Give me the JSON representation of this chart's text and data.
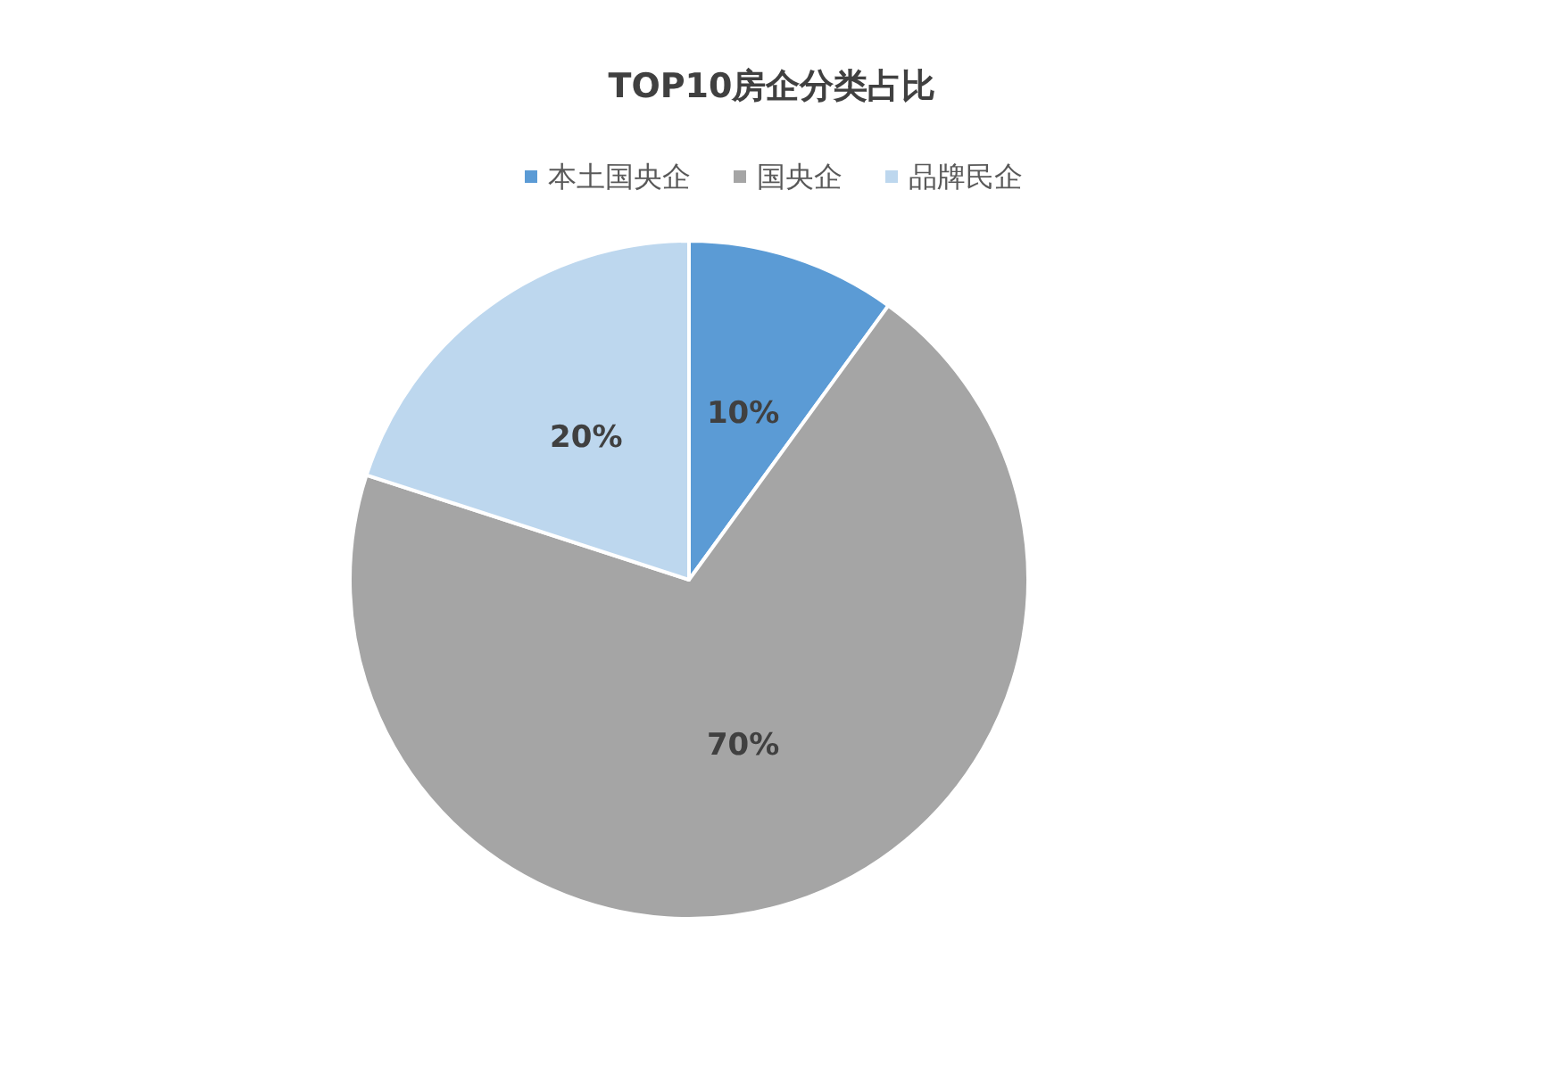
{
  "chart_data": {
    "type": "pie",
    "title": "TOP10房企分类占比",
    "categories": [
      "本土国央企",
      "国央企",
      "品牌民企"
    ],
    "values": [
      10,
      70,
      20
    ],
    "colors": [
      "#5b9bd5",
      "#a5a5a5",
      "#bdd7ee"
    ],
    "value_labels": [
      "10%",
      "70%",
      "20%"
    ],
    "legend": "top"
  }
}
